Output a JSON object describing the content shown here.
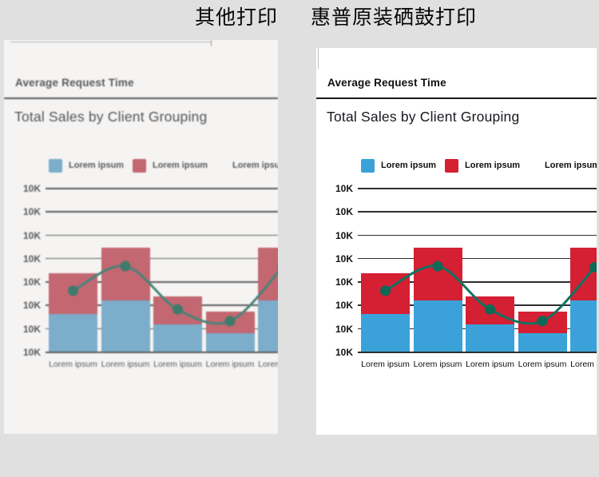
{
  "header": {
    "left_label": "其他打印",
    "right_label": "惠普原装硒鼓打印"
  },
  "panels": {
    "left": {
      "quality": "blurry-faded-print",
      "doc_title": "Average Request Time",
      "chart_title": "Total Sales by Client Grouping"
    },
    "right": {
      "quality": "sharp-print",
      "doc_title": "Average Request Time",
      "chart_title": "Total Sales by Client Grouping"
    }
  },
  "chart_data": {
    "type": "bar",
    "subtype": "stacked-bars-with-spline-line",
    "title": "Total Sales by Client Grouping",
    "categories": [
      "Lorem ipsum",
      "Lorem ipsum",
      "Lorem ipsum",
      "Lorem ipsum",
      "Lorem ipsum"
    ],
    "series": [
      {
        "name": "Lorem ipsum",
        "type": "bar",
        "color": "#3aa2d9",
        "values_k": [
          16,
          22,
          11.5,
          8,
          22
        ]
      },
      {
        "name": "Lorem ipsum",
        "type": "bar",
        "color": "#d51f33",
        "values_k": [
          17.5,
          22.5,
          12,
          9,
          22.5
        ]
      },
      {
        "name": "Lorem ipsum",
        "type": "line",
        "color": "#0f7261",
        "values_k": [
          26,
          36.5,
          18,
          13,
          36
        ]
      }
    ],
    "y_ticks": [
      "10K",
      "10K",
      "10K",
      "10K",
      "10K",
      "10K",
      "10K",
      "10K"
    ],
    "units_per_gridline_k": 10,
    "ylim_k": [
      0,
      70
    ],
    "grid": true,
    "legend_position": "top",
    "note": "Both sheets depict the identical chart; 5th bar and 5th category label are cut off at the sheet's right edge"
  },
  "colors": {
    "page_background": "#e0e0e0",
    "sheet_right_background": "#ffffff",
    "sheet_left_background": "#f5f4f2",
    "bar_blue": "#3aa2d9",
    "bar_red": "#d51f33",
    "line_teal": "#0f7261",
    "header_text": "#050505"
  }
}
